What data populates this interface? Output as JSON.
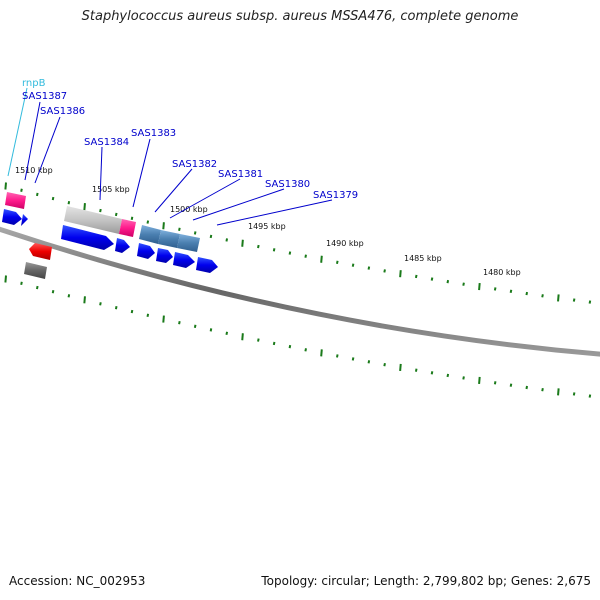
{
  "title": "Staphylococcus aureus subsp. aureus MSSA476, complete genome",
  "footer": {
    "accession": "Accession: NC_002953",
    "topology": "Topology: circular; Length: 2,799,802 bp; Genes: 2,675"
  },
  "colors": {
    "forward_cds": "#0000ee",
    "reverse_cds": "#ee0000",
    "rna": "#ff1a8c",
    "gene_grey": "#aaaaaa",
    "hit_blue": "#4a7fb0",
    "tick_green": "#1a7a1a",
    "backbone": "#777777",
    "label_blue": "#0000cc",
    "label_cyan": "#33bbdd"
  },
  "scale_labels": [
    {
      "text": "1510 kbp"
    },
    {
      "text": "1505 kbp"
    },
    {
      "text": "1500 kbp"
    },
    {
      "text": "1495 kbp"
    },
    {
      "text": "1490 kbp"
    },
    {
      "text": "1485 kbp"
    },
    {
      "text": "1480 kbp"
    }
  ],
  "gene_labels": [
    {
      "name": "rnpB",
      "kind": "rna"
    },
    {
      "name": "SAS1387",
      "kind": "cds"
    },
    {
      "name": "SAS1386",
      "kind": "cds"
    },
    {
      "name": "SAS1384",
      "kind": "cds"
    },
    {
      "name": "SAS1383",
      "kind": "cds"
    },
    {
      "name": "SAS1382",
      "kind": "cds"
    },
    {
      "name": "SAS1381",
      "kind": "cds"
    },
    {
      "name": "SAS1380",
      "kind": "cds"
    },
    {
      "name": "SAS1379",
      "kind": "cds"
    }
  ]
}
